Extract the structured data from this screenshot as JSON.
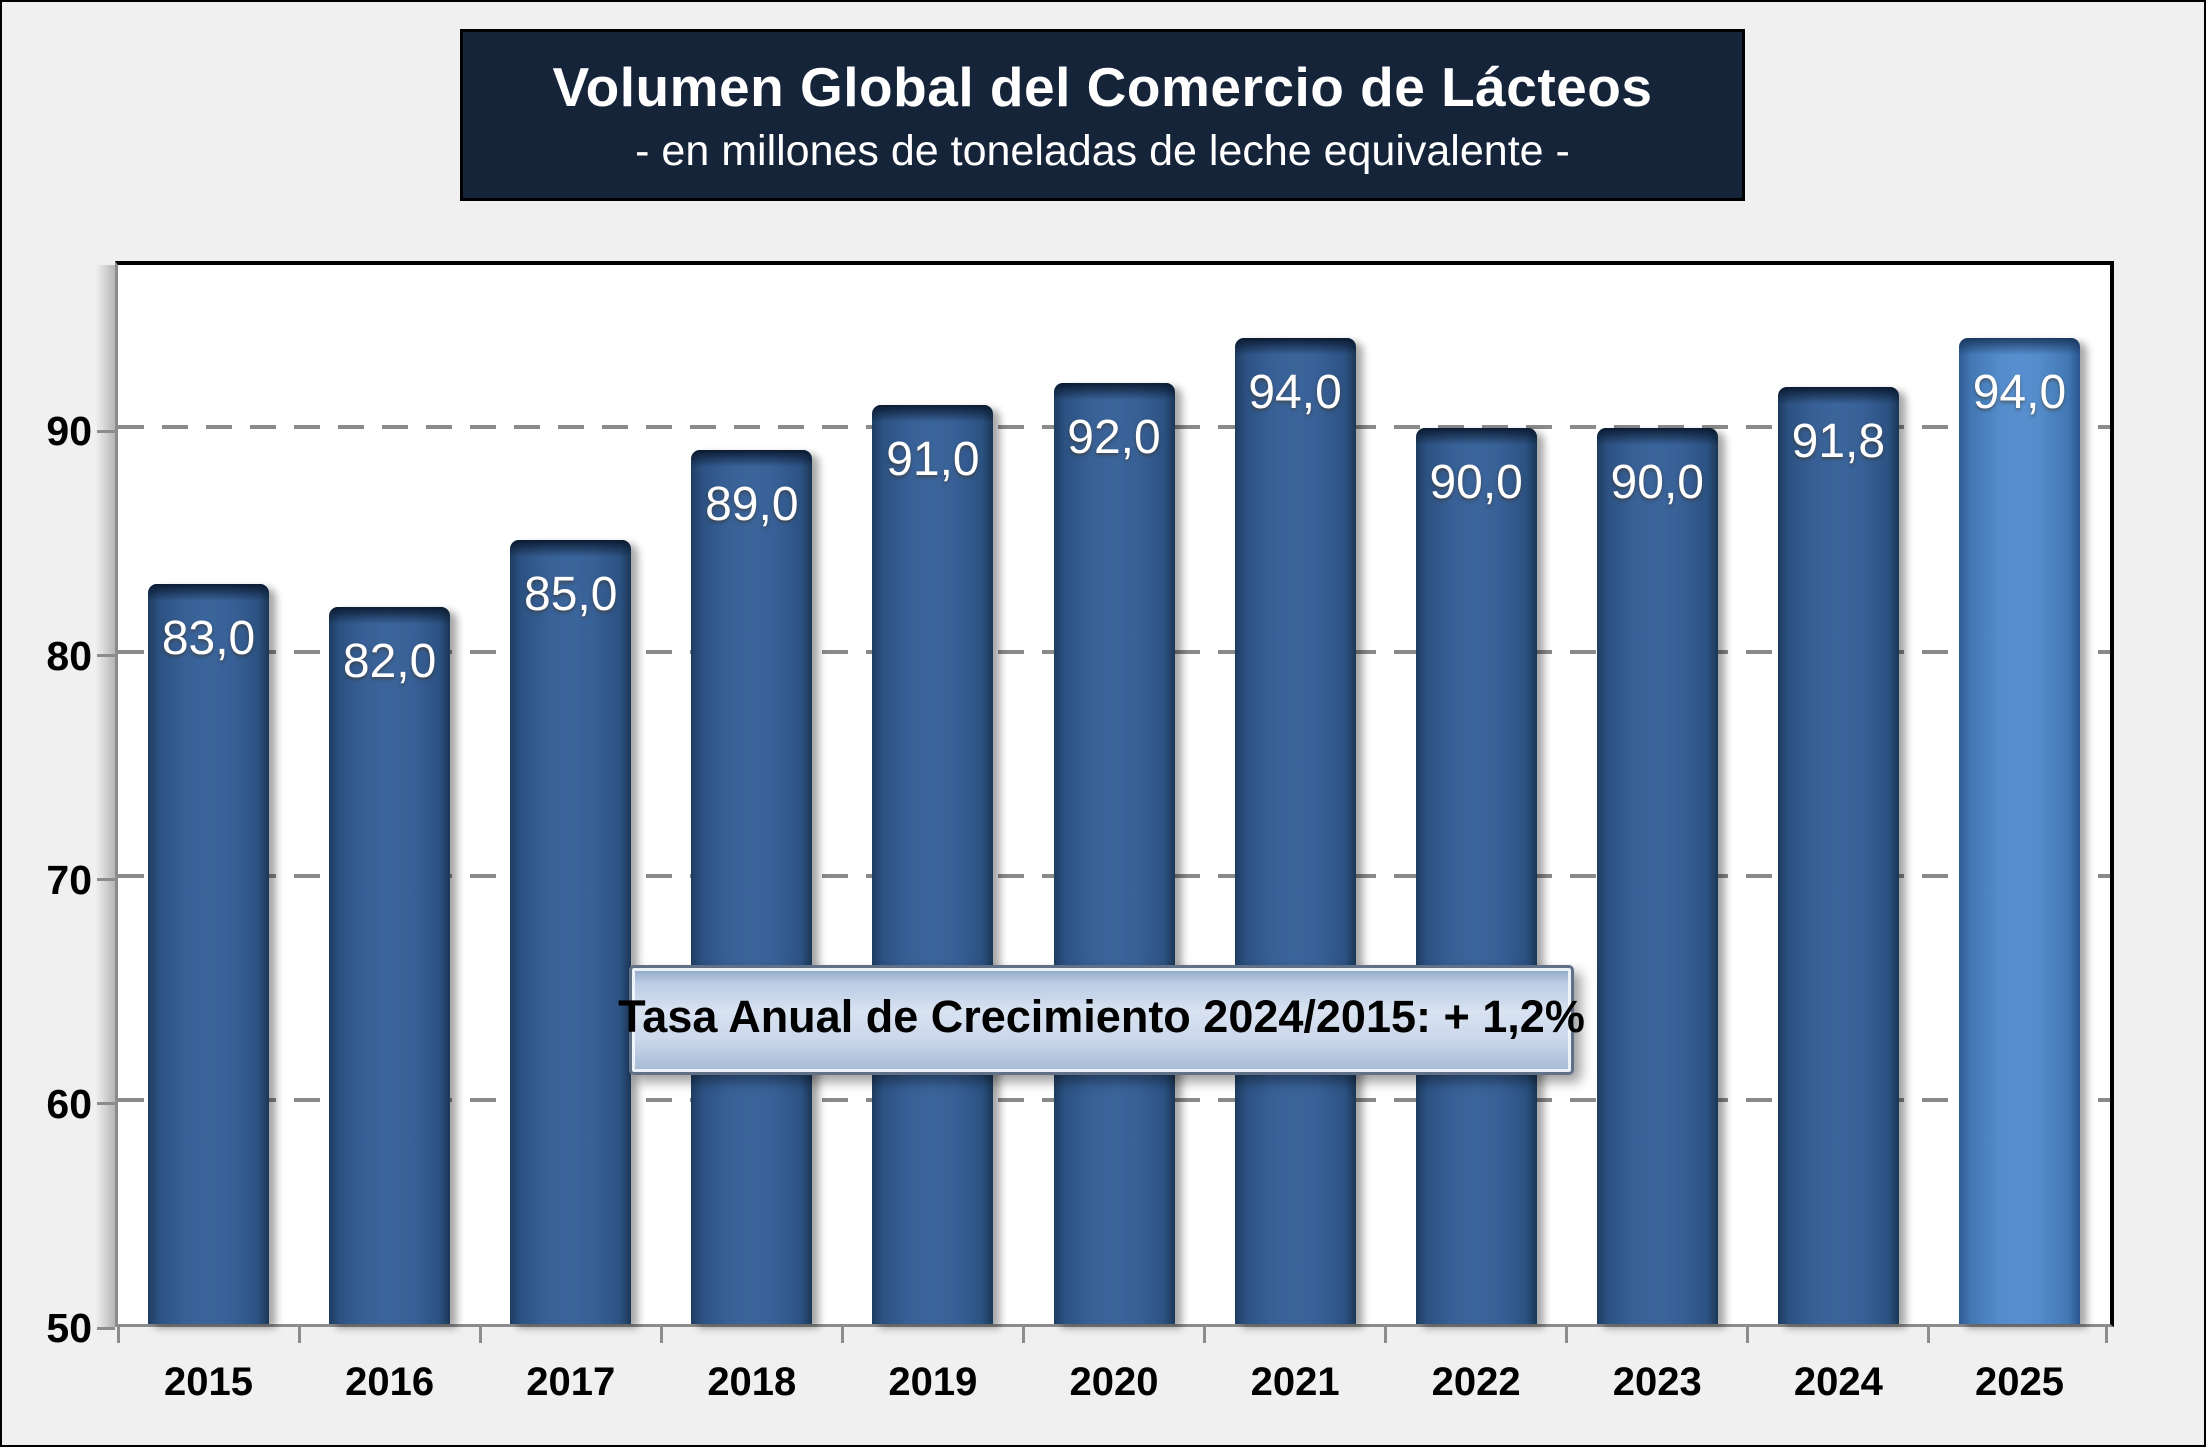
{
  "page": {
    "background_color": "#F0F0F0"
  },
  "title": {
    "text": "Volumen Global del Comercio de Lácteos",
    "subtitle": "- en millones de toneladas de leche equivalente -",
    "bg_color": "#16243A",
    "text_color": "#FFFFFF"
  },
  "annotation": {
    "text": "Tasa Anual de Crecimiento 2024/2015: + 1,2%"
  },
  "chart_data": {
    "type": "bar",
    "title": "Volumen Global del Comercio de Lácteos",
    "subtitle": "- en millones de toneladas de leche equivalente -",
    "ylabel": "millones de toneladas de leche equivalente",
    "xlabel": "",
    "categories": [
      "2015",
      "2016",
      "2017",
      "2018",
      "2019",
      "2020",
      "2021",
      "2022",
      "2023",
      "2024",
      "2025"
    ],
    "values": [
      83.0,
      82.0,
      85.0,
      89.0,
      91.0,
      92.0,
      94.0,
      90.0,
      90.0,
      91.8,
      94.0
    ],
    "data_labels": [
      "83,0",
      "82,0",
      "85,0",
      "89,0",
      "91,0",
      "92,0",
      "94,0",
      "90,0",
      "90,0",
      "91,8",
      "94,0"
    ],
    "highlight_index": 10,
    "ylim": [
      50,
      97.25
    ],
    "yticks": [
      50,
      60,
      70,
      80,
      90
    ],
    "gridlines": [
      60,
      70,
      80,
      90
    ],
    "grid_style": "dashed horizontal",
    "legend": "none",
    "bar_color": "#35618F",
    "highlight_bar_color": "#578FD0",
    "annotation": "Tasa Anual de Crecimiento 2024/2015: + 1,2%"
  }
}
